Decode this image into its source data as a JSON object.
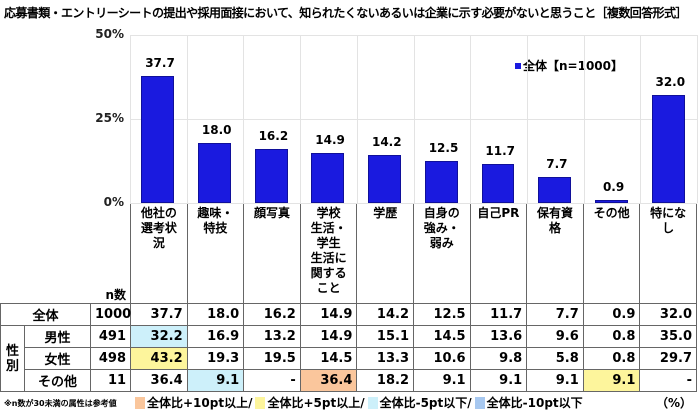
{
  "title": "応募書類・エントリーシートの提出や採用面接において、知られたくないあるいは企業に示す必要がないと思うこと［複数回答形式］",
  "legend": {
    "label": "全体【n=1000】",
    "color": "#1a1adf"
  },
  "y_ticks": [
    "50%",
    "25%",
    "0%"
  ],
  "n_header": "n数",
  "categories": [
    "他社の選考状況",
    "趣味・特技",
    "顔写真",
    "学校生活・学生生活に関すること",
    "学歴",
    "自身の強み・弱み",
    "自己PR",
    "保有資格",
    "その他",
    "特になし"
  ],
  "category_lines": [
    [
      "他社の",
      "選考状況"
    ],
    [
      "趣味・",
      "特技"
    ],
    [
      "顔写真"
    ],
    [
      "学校",
      "生活・",
      "学生",
      "生活に",
      "関する",
      "こと"
    ],
    [
      "学歴"
    ],
    [
      "自身の",
      "強み・",
      "弱み"
    ],
    [
      "自己PR"
    ],
    [
      "保有資格"
    ],
    [
      "その他"
    ],
    [
      "特になし"
    ]
  ],
  "table": {
    "group_label": "性別",
    "rows": [
      {
        "label": "全体",
        "n": "1000",
        "values": [
          "37.7",
          "18.0",
          "16.2",
          "14.9",
          "14.2",
          "12.5",
          "11.7",
          "7.7",
          "0.9",
          "32.0"
        ],
        "colors": [
          "",
          "",
          "",
          "",
          "",
          "",
          "",
          "",
          "",
          ""
        ]
      },
      {
        "label": "男性",
        "n": "491",
        "values": [
          "32.2",
          "16.9",
          "13.2",
          "14.9",
          "15.1",
          "14.5",
          "13.6",
          "9.6",
          "0.8",
          "35.0"
        ],
        "colors": [
          "lblue",
          "",
          "",
          "",
          "",
          "",
          "",
          "",
          "",
          ""
        ]
      },
      {
        "label": "女性",
        "n": "498",
        "values": [
          "43.2",
          "19.3",
          "19.5",
          "14.5",
          "13.3",
          "10.6",
          "9.8",
          "5.8",
          "0.8",
          "29.7"
        ],
        "colors": [
          "yellow",
          "",
          "",
          "",
          "",
          "",
          "",
          "",
          "",
          ""
        ]
      },
      {
        "label": "その他",
        "n": "11",
        "values": [
          "36.4",
          "9.1",
          "-",
          "36.4",
          "18.2",
          "9.1",
          "9.1",
          "9.1",
          "9.1",
          "-"
        ],
        "colors": [
          "",
          "lblue",
          "",
          "orange",
          "",
          "",
          "",
          "",
          "yellow",
          ""
        ]
      }
    ]
  },
  "footnote": "※n数が30未満の属性は参考値",
  "color_legend": [
    {
      "label": "全体比+10pt以上/",
      "color": "#fac69c"
    },
    {
      "label": "全体比+5pt以上/",
      "color": "#fdf59c"
    },
    {
      "label": "全体比-5pt以下/",
      "color": "#cdf0fa"
    },
    {
      "label": "全体比-10pt以下",
      "color": "#a7c8f0"
    }
  ],
  "unit": "（%）",
  "chart_data": {
    "type": "bar",
    "title": "応募書類・エントリーシートの提出や採用面接において、知られたくないあるいは企業に示す必要がないと思うこと［複数回答形式］",
    "categories": [
      "他社の選考状況",
      "趣味・特技",
      "顔写真",
      "学校生活・学生生活に関すること",
      "学歴",
      "自身の強み・弱み",
      "自己PR",
      "保有資格",
      "その他",
      "特になし"
    ],
    "series": [
      {
        "name": "全体【n=1000】",
        "values": [
          37.7,
          18.0,
          16.2,
          14.9,
          14.2,
          12.5,
          11.7,
          7.7,
          0.9,
          32.0
        ]
      }
    ],
    "xlabel": "",
    "ylabel": "%",
    "ylim": [
      0,
      50
    ],
    "yticks": [
      "0%",
      "25%",
      "50%"
    ],
    "grid": true,
    "legend_position": "top-right"
  }
}
